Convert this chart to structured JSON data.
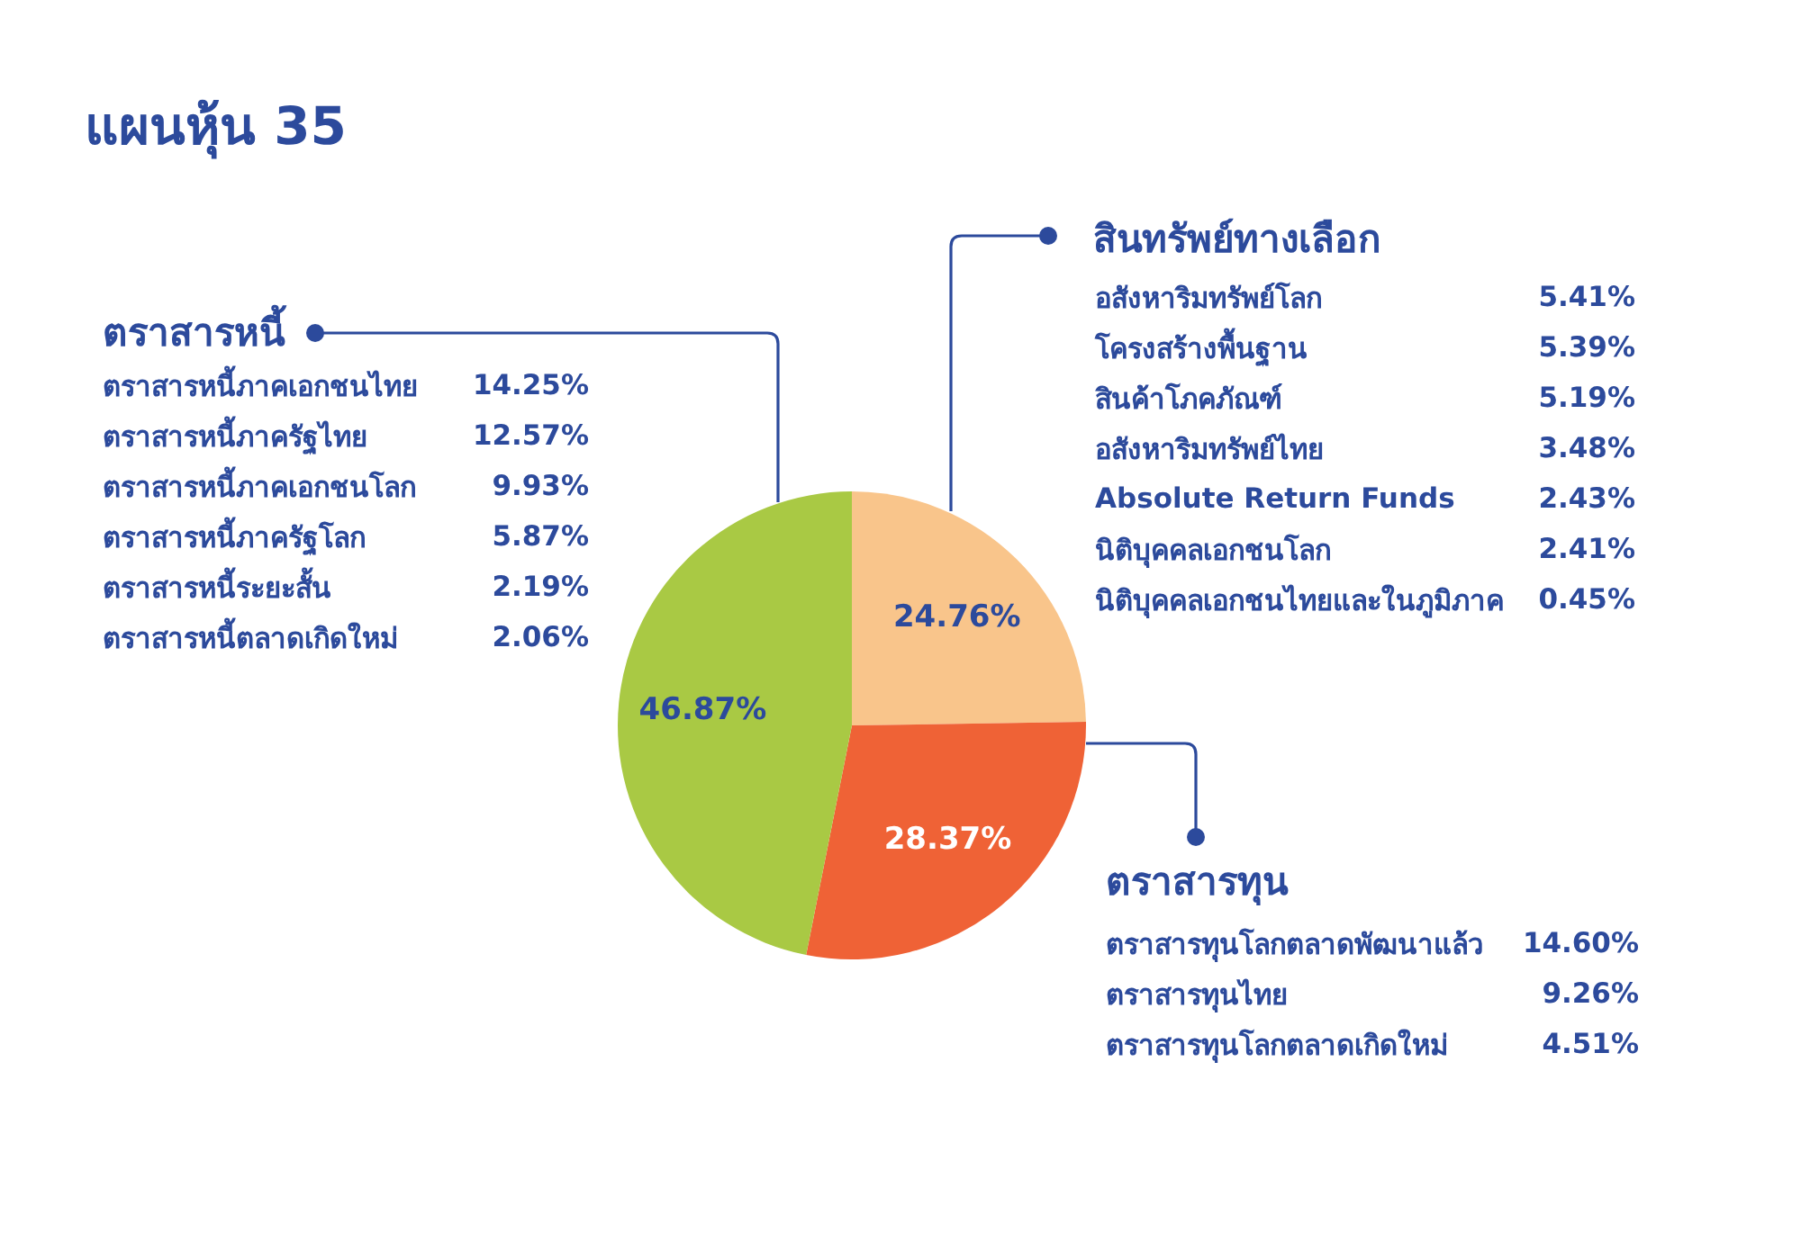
{
  "chart_data": [
    {
      "type": "pie",
      "title": "แผนหุ้น 35",
      "categories": [
        "สินทรัพย์ทางเลือก",
        "ตราสารทุน",
        "ตราสารหนี้"
      ],
      "values": [
        24.76,
        28.37,
        46.87
      ],
      "colors": [
        "#f9c58b",
        "#ef6236",
        "#a9c944"
      ],
      "value_labels": [
        "24.76%",
        "28.37%",
        "46.87%"
      ]
    },
    {
      "type": "other",
      "categories": [
        "อสังหาริมทรัพย์โลก",
        "โครงสร้างพื้นฐาน",
        "สินค้าโภคภัณฑ์",
        "อสังหาริมทรัพย์ไทย",
        "Absolute Return Funds",
        "นิติบุคคลเอกชนโลก",
        "นิติบุคคลเอกชนไทยและในภูมิภาค"
      ],
      "values": [
        5.41,
        5.39,
        5.19,
        3.48,
        2.43,
        2.41,
        0.45
      ],
      "value_labels": [
        "5.41%",
        "5.39%",
        "5.19%",
        "3.48%",
        "2.43%",
        "2.41%",
        "0.45%"
      ]
    },
    {
      "type": "other",
      "categories": [
        "ตราสารทุนโลกตลาดพัฒนาแล้ว",
        "ตราสารทุนไทย",
        "ตราสารทุนโลกตลาดเกิดใหม่"
      ],
      "values": [
        14.6,
        9.26,
        4.51
      ],
      "value_labels": [
        "14.60%",
        "9.26%",
        "4.51%"
      ]
    },
    {
      "type": "other",
      "categories": [
        "ตราสารหนี้ภาคเอกชนไทย",
        "ตราสารหนี้ภาครัฐไทย",
        "ตราสารหนี้ภาคเอกชนโลก",
        "ตราสารหนี้ภาครัฐโลก",
        "ตราสารหนี้ระยะสั้น",
        "ตราสารหนี้ตลาดเกิดใหม่"
      ],
      "values": [
        14.25,
        12.57,
        9.93,
        5.87,
        2.19,
        2.06
      ],
      "value_labels": [
        "14.25%",
        "12.57%",
        "9.93%",
        "5.87%",
        "2.19%",
        "2.06%"
      ]
    }
  ]
}
